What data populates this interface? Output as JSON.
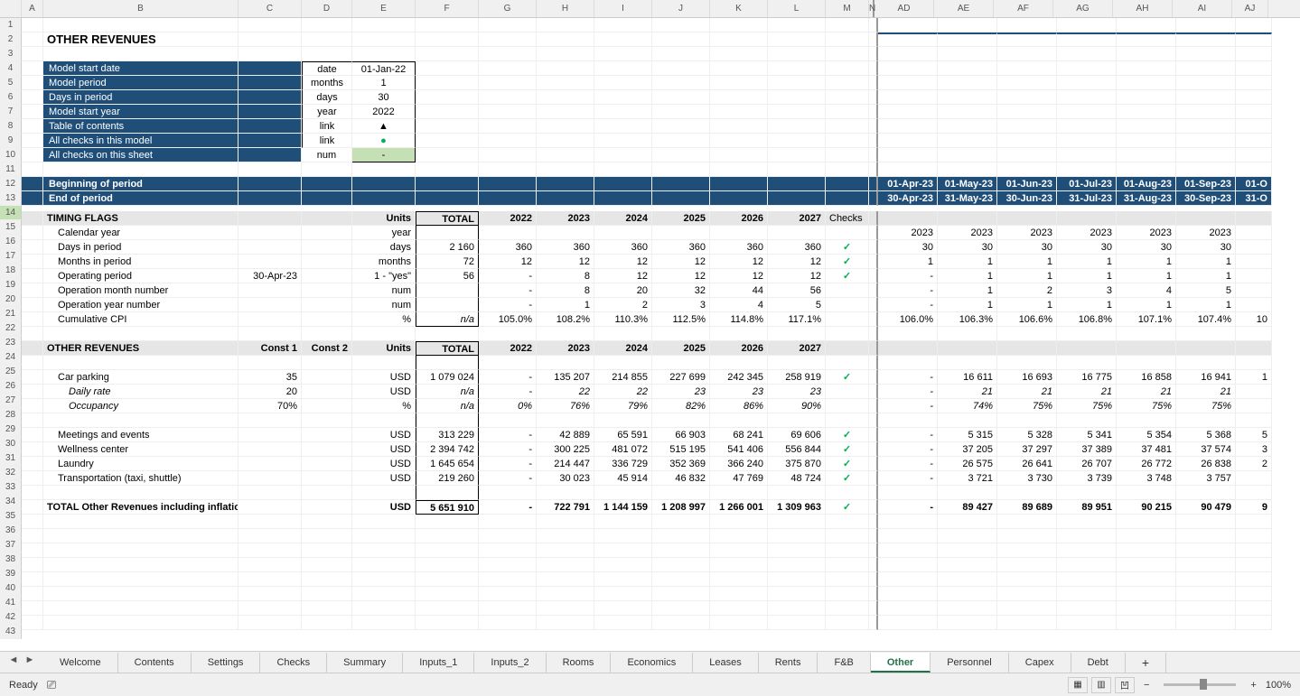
{
  "columns": [
    {
      "k": "A",
      "w": "cA",
      "label": "A"
    },
    {
      "k": "B",
      "w": "cB",
      "label": "B"
    },
    {
      "k": "C",
      "w": "cC",
      "label": "C"
    },
    {
      "k": "D",
      "w": "cD",
      "label": "D"
    },
    {
      "k": "E",
      "w": "cE",
      "label": "E"
    },
    {
      "k": "F",
      "w": "cF",
      "label": "F"
    },
    {
      "k": "G",
      "w": "cG",
      "label": "G"
    },
    {
      "k": "H",
      "w": "cH",
      "label": "H"
    },
    {
      "k": "I",
      "w": "cI",
      "label": "I"
    },
    {
      "k": "J",
      "w": "cJ",
      "label": "J"
    },
    {
      "k": "K",
      "w": "cK",
      "label": "K"
    },
    {
      "k": "L",
      "w": "cL",
      "label": "L"
    },
    {
      "k": "M",
      "w": "cM",
      "label": "M"
    },
    {
      "k": "N",
      "w": "cN",
      "label": "N"
    },
    {
      "k": "AD",
      "w": "cAD",
      "label": "AD"
    },
    {
      "k": "AE",
      "w": "cAE",
      "label": "AE"
    },
    {
      "k": "AF",
      "w": "cAF",
      "label": "AF"
    },
    {
      "k": "AG",
      "w": "cAG",
      "label": "AG"
    },
    {
      "k": "AH",
      "w": "cAH",
      "label": "AH"
    },
    {
      "k": "AI",
      "w": "cAI",
      "label": "AI"
    },
    {
      "k": "AJ",
      "w": "cAJ",
      "label": "AJ"
    }
  ],
  "row_numbers": [
    1,
    2,
    3,
    4,
    5,
    6,
    7,
    8,
    9,
    10,
    11,
    12,
    13,
    14,
    15,
    16,
    17,
    18,
    19,
    20,
    21,
    22,
    23,
    24,
    25,
    26,
    27,
    28,
    29,
    30,
    31,
    32,
    33,
    34,
    35,
    36,
    37,
    38,
    39,
    40,
    41,
    42,
    43
  ],
  "selected_row": 14,
  "title": "OTHER REVENUES",
  "model_info": {
    "rows": [
      {
        "label": "Model start date",
        "unit": "date",
        "value": "01-Jan-22"
      },
      {
        "label": "Model period",
        "unit": "months",
        "value": "1"
      },
      {
        "label": "Days in period",
        "unit": "days",
        "value": "30"
      },
      {
        "label": "Model start year",
        "unit": "year",
        "value": "2022"
      },
      {
        "label": "Table of contents",
        "unit": "link",
        "value": "▲"
      },
      {
        "label": "All checks in this model",
        "unit": "link",
        "value": "dot"
      },
      {
        "label": "All checks on this sheet",
        "unit": "num",
        "value": "-",
        "green": true
      }
    ]
  },
  "period_header": {
    "begin_label": "Beginning of period",
    "end_label": "End of period",
    "begin": [
      "01-Apr-23",
      "01-May-23",
      "01-Jun-23",
      "01-Jul-23",
      "01-Aug-23",
      "01-Sep-23",
      "01-O"
    ],
    "end": [
      "30-Apr-23",
      "31-May-23",
      "30-Jun-23",
      "31-Jul-23",
      "31-Aug-23",
      "30-Sep-23",
      "31-O"
    ]
  },
  "timing_flags": {
    "header": "TIMING FLAGS",
    "units_label": "Units",
    "total_label": "TOTAL",
    "years": [
      "2022",
      "2023",
      "2024",
      "2025",
      "2026",
      "2027"
    ],
    "checks_label": "Checks",
    "rows": [
      {
        "label": "Calendar year",
        "unit": "year",
        "total": "",
        "vals": [
          "",
          "",
          "",
          "",
          "",
          ""
        ],
        "right": [
          "2023",
          "2023",
          "2023",
          "2023",
          "2023",
          "2023",
          ""
        ]
      },
      {
        "label": "Days in period",
        "unit": "days",
        "total": "2 160",
        "vals": [
          "360",
          "360",
          "360",
          "360",
          "360",
          "360"
        ],
        "check": true,
        "right": [
          "30",
          "30",
          "30",
          "30",
          "30",
          "30",
          ""
        ]
      },
      {
        "label": "Months in period",
        "unit": "months",
        "total": "72",
        "vals": [
          "12",
          "12",
          "12",
          "12",
          "12",
          "12"
        ],
        "check": true,
        "right": [
          "1",
          "1",
          "1",
          "1",
          "1",
          "1",
          ""
        ]
      },
      {
        "label": "Operating period",
        "c": "30-Apr-23",
        "unit": "1 - \"yes\"",
        "total": "56",
        "vals": [
          "-",
          "8",
          "12",
          "12",
          "12",
          "12"
        ],
        "check": true,
        "right": [
          "-",
          "1",
          "1",
          "1",
          "1",
          "1",
          ""
        ]
      },
      {
        "label": "Operation month number",
        "unit": "num",
        "total": "",
        "vals": [
          "-",
          "8",
          "20",
          "32",
          "44",
          "56"
        ],
        "right": [
          "-",
          "1",
          "2",
          "3",
          "4",
          "5",
          ""
        ]
      },
      {
        "label": "Operation year number",
        "unit": "num",
        "total": "",
        "vals": [
          "-",
          "1",
          "2",
          "3",
          "4",
          "5"
        ],
        "right": [
          "-",
          "1",
          "1",
          "1",
          "1",
          "1",
          ""
        ]
      },
      {
        "label": "Cumulative CPI",
        "unit": "%",
        "total": "n/a",
        "vals": [
          "105.0%",
          "108.2%",
          "110.3%",
          "112.5%",
          "114.8%",
          "117.1%"
        ],
        "right": [
          "106.0%",
          "106.3%",
          "106.6%",
          "106.8%",
          "107.1%",
          "107.4%",
          "10"
        ]
      }
    ]
  },
  "other_revenues": {
    "header": "OTHER REVENUES",
    "const1_label": "Const 1",
    "const2_label": "Const 2",
    "units_label": "Units",
    "total_label": "TOTAL",
    "years": [
      "2022",
      "2023",
      "2024",
      "2025",
      "2026",
      "2027"
    ],
    "rows": [
      {
        "label": "Car parking",
        "c1": "35",
        "unit": "USD",
        "total": "1 079 024",
        "vals": [
          "-",
          "135 207",
          "214 855",
          "227 699",
          "242 345",
          "258 919"
        ],
        "check": true,
        "right": [
          "-",
          "16 611",
          "16 693",
          "16 775",
          "16 858",
          "16 941",
          "1"
        ]
      },
      {
        "label": "Daily rate",
        "italic": true,
        "c1": "20",
        "unit": "USD",
        "total": "n/a",
        "vals": [
          "-",
          "22",
          "22",
          "23",
          "23",
          "23"
        ],
        "right": [
          "-",
          "21",
          "21",
          "21",
          "21",
          "21",
          ""
        ]
      },
      {
        "label": "Occupancy",
        "italic": true,
        "c1": "70%",
        "unit": "%",
        "total": "n/a",
        "vals": [
          "0%",
          "76%",
          "79%",
          "82%",
          "86%",
          "90%"
        ],
        "right": [
          "-",
          "74%",
          "75%",
          "75%",
          "75%",
          "75%",
          ""
        ]
      },
      {
        "blank": true
      },
      {
        "label": "Meetings and events",
        "unit": "USD",
        "total": "313 229",
        "vals": [
          "-",
          "42 889",
          "65 591",
          "66 903",
          "68 241",
          "69 606"
        ],
        "check": true,
        "right": [
          "-",
          "5 315",
          "5 328",
          "5 341",
          "5 354",
          "5 368",
          "5"
        ]
      },
      {
        "label": "Wellness center",
        "unit": "USD",
        "total": "2 394 742",
        "vals": [
          "-",
          "300 225",
          "481 072",
          "515 195",
          "541 406",
          "556 844"
        ],
        "check": true,
        "right": [
          "-",
          "37 205",
          "37 297",
          "37 389",
          "37 481",
          "37 574",
          "3"
        ]
      },
      {
        "label": "Laundry",
        "unit": "USD",
        "total": "1 645 654",
        "vals": [
          "-",
          "214 447",
          "336 729",
          "352 369",
          "366 240",
          "375 870"
        ],
        "check": true,
        "right": [
          "-",
          "26 575",
          "26 641",
          "26 707",
          "26 772",
          "26 838",
          "2"
        ]
      },
      {
        "label": "Transportation (taxi, shuttle)",
        "unit": "USD",
        "total": "219 260",
        "vals": [
          "-",
          "30 023",
          "45 914",
          "46 832",
          "47 769",
          "48 724"
        ],
        "check": true,
        "right": [
          "-",
          "3 721",
          "3 730",
          "3 739",
          "3 748",
          "3 757",
          ""
        ]
      }
    ],
    "total_row": {
      "label": "TOTAL Other Revenues including inflation",
      "unit": "USD",
      "total": "5 651 910",
      "vals": [
        "-",
        "722 791",
        "1 144 159",
        "1 208 997",
        "1 266 001",
        "1 309 963"
      ],
      "check": true,
      "right": [
        "-",
        "89 427",
        "89 689",
        "89 951",
        "90 215",
        "90 479",
        "9"
      ]
    }
  },
  "tabs": [
    "Welcome",
    "Contents",
    "Settings",
    "Checks",
    "Summary",
    "Inputs_1",
    "Inputs_2",
    "Rooms",
    "Economics",
    "Leases",
    "Rents",
    "F&B",
    "Other",
    "Personnel",
    "Capex",
    "Debt"
  ],
  "active_tab": "Other",
  "status": {
    "ready": "Ready",
    "zoom": "100%"
  }
}
